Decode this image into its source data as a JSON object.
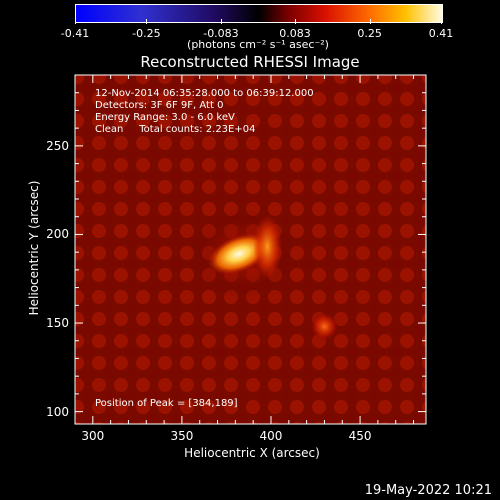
{
  "colorbar": {
    "ticks": [
      "-0.41",
      "-0.25",
      "-0.083",
      "0.083",
      "0.25",
      "0.41"
    ],
    "tick_values": [
      -0.41,
      -0.25,
      -0.083,
      0.083,
      0.25,
      0.41
    ],
    "range": [
      -0.41,
      0.41
    ],
    "label": "(photons cm⁻² s⁻¹ asec⁻²)"
  },
  "annotations": {
    "time_range": "12-Nov-2014 06:35:28.000 to 06:39:12.000",
    "detectors": "Detectors: 3F 6F 9F, Att 0",
    "energy": "Energy Range: 3.0 - 6.0 keV",
    "clean": "Clean     Total counts: 2.23E+04",
    "peak": "Position of Peak = [384,189]"
  },
  "timestamp": "19-May-2022 10:21",
  "colors": {
    "background": "#000000",
    "hot": "#ffd24a",
    "mid": "#c81a00",
    "low": "#500000"
  },
  "chart_data": {
    "type": "heatmap",
    "title": "Reconstructed RHESSI Image",
    "xlabel": "Heliocentric X (arcsec)",
    "ylabel": "Heliocentric Y (arcsec)",
    "xlim": [
      290,
      487
    ],
    "ylim": [
      93,
      290
    ],
    "x_ticks": [
      300,
      350,
      400,
      450
    ],
    "y_ticks": [
      100,
      150,
      200,
      250
    ],
    "peak_position": [
      384,
      189
    ],
    "sources": [
      {
        "x": 382,
        "y": 189,
        "intensity": 0.41,
        "sx": 9,
        "sy": 5
      },
      {
        "x": 398,
        "y": 193,
        "intensity": 0.3,
        "sx": 4,
        "sy": 9
      },
      {
        "x": 430,
        "y": 148,
        "intensity": 0.2,
        "sx": 4,
        "sy": 4
      }
    ]
  }
}
